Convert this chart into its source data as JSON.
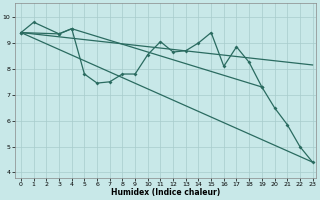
{
  "xlabel": "Humidex (Indice chaleur)",
  "background_color": "#c8e8e8",
  "line_color": "#2a6b60",
  "grid_color": "#a8cccc",
  "yticks": [
    4,
    5,
    6,
    7,
    8,
    9,
    10
  ],
  "xticks": [
    0,
    1,
    2,
    3,
    4,
    5,
    6,
    7,
    8,
    9,
    10,
    11,
    12,
    13,
    14,
    15,
    16,
    17,
    18,
    19,
    20,
    21,
    22,
    23
  ],
  "x_zigzag": [
    0,
    1,
    3,
    4,
    5,
    6,
    7,
    8,
    9,
    10,
    11,
    12,
    13,
    14,
    15,
    16,
    17,
    18,
    19
  ],
  "y_zigzag": [
    9.4,
    9.8,
    9.35,
    9.55,
    7.8,
    7.45,
    7.5,
    7.8,
    7.8,
    8.55,
    9.05,
    8.65,
    8.7,
    9.0,
    9.4,
    8.1,
    8.85,
    8.25,
    7.3
  ],
  "x_lower": [
    0,
    3,
    4,
    19,
    20,
    21,
    22,
    23
  ],
  "y_lower": [
    9.4,
    9.35,
    9.55,
    7.3,
    6.5,
    5.85,
    5.0,
    4.4
  ],
  "reg_line1": [
    [
      0,
      9.4
    ],
    [
      23,
      8.15
    ]
  ],
  "reg_line2": [
    [
      0,
      9.4
    ],
    [
      23,
      4.4
    ]
  ],
  "xlim": [
    -0.5,
    23.3
  ],
  "ylim": [
    3.8,
    10.55
  ]
}
